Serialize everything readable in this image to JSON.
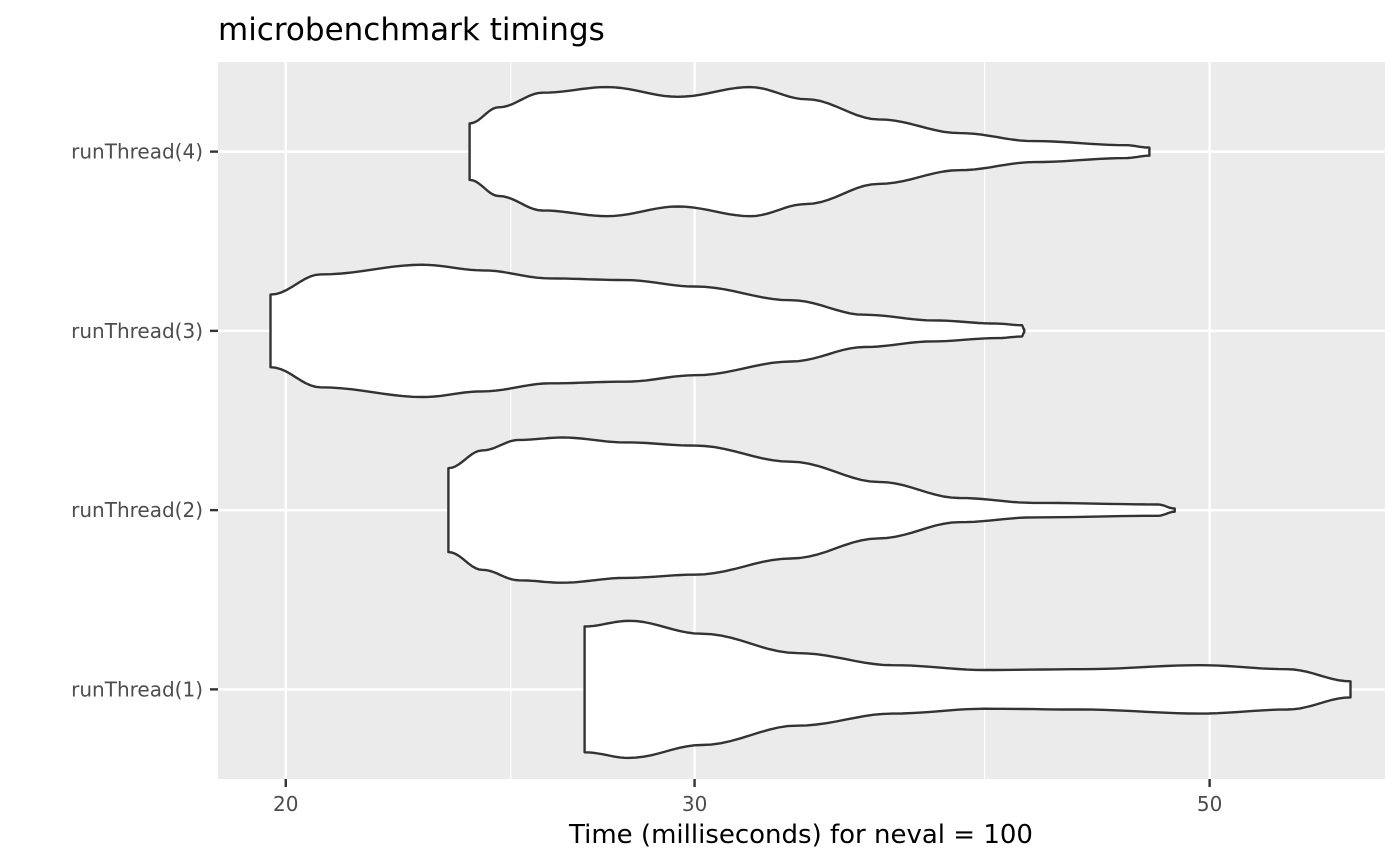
{
  "chart_data": {
    "type": "violin",
    "title": "microbenchmark timings",
    "xlabel": "Time (milliseconds) for neval = 100",
    "ylabel": "",
    "x_scale": "log10",
    "xlim": [
      18.7,
      59.5
    ],
    "x_ticks": [
      20,
      30,
      50
    ],
    "x_minor_ticks": [
      25,
      40
    ],
    "grid": true,
    "background": "#ebebeb",
    "violin_fill": "#ffffff",
    "violin_stroke": "#333333",
    "categories": [
      "runThread(1)",
      "runThread(2)",
      "runThread(3)",
      "runThread(4)"
    ],
    "series": [
      {
        "category": "runThread(1)",
        "density": [
          [
            26.9,
            0.78
          ],
          [
            28.1,
            0.85
          ],
          [
            30.2,
            0.69
          ],
          [
            33.2,
            0.45
          ],
          [
            36.5,
            0.3
          ],
          [
            40.0,
            0.24
          ],
          [
            44.0,
            0.25
          ],
          [
            49.5,
            0.3
          ],
          [
            54.0,
            0.25
          ],
          [
            57.5,
            0.1
          ]
        ]
      },
      {
        "category": "runThread(2)",
        "density": [
          [
            23.5,
            0.52
          ],
          [
            24.3,
            0.74
          ],
          [
            25.2,
            0.87
          ],
          [
            26.3,
            0.9
          ],
          [
            28.0,
            0.84
          ],
          [
            30.0,
            0.8
          ],
          [
            33.0,
            0.6
          ],
          [
            36.0,
            0.35
          ],
          [
            39.0,
            0.15
          ],
          [
            42.0,
            0.09
          ],
          [
            47.5,
            0.07
          ],
          [
            48.3,
            0.02
          ]
        ]
      },
      {
        "category": "runThread(3)",
        "density": [
          [
            19.7,
            0.45
          ],
          [
            20.7,
            0.7
          ],
          [
            22.9,
            0.82
          ],
          [
            24.3,
            0.75
          ],
          [
            26.0,
            0.65
          ],
          [
            28.0,
            0.63
          ],
          [
            30.0,
            0.55
          ],
          [
            33.0,
            0.38
          ],
          [
            35.5,
            0.2
          ],
          [
            38.0,
            0.13
          ],
          [
            40.5,
            0.09
          ],
          [
            41.5,
            0.07
          ],
          [
            41.6,
            0.02
          ]
        ]
      },
      {
        "category": "runThread(4)",
        "density": [
          [
            24.0,
            0.35
          ],
          [
            24.7,
            0.55
          ],
          [
            25.8,
            0.73
          ],
          [
            27.5,
            0.8
          ],
          [
            29.5,
            0.68
          ],
          [
            31.7,
            0.8
          ],
          [
            33.5,
            0.65
          ],
          [
            36.0,
            0.4
          ],
          [
            39.0,
            0.23
          ],
          [
            42.0,
            0.13
          ],
          [
            46.0,
            0.08
          ],
          [
            47.1,
            0.05
          ]
        ]
      }
    ]
  }
}
